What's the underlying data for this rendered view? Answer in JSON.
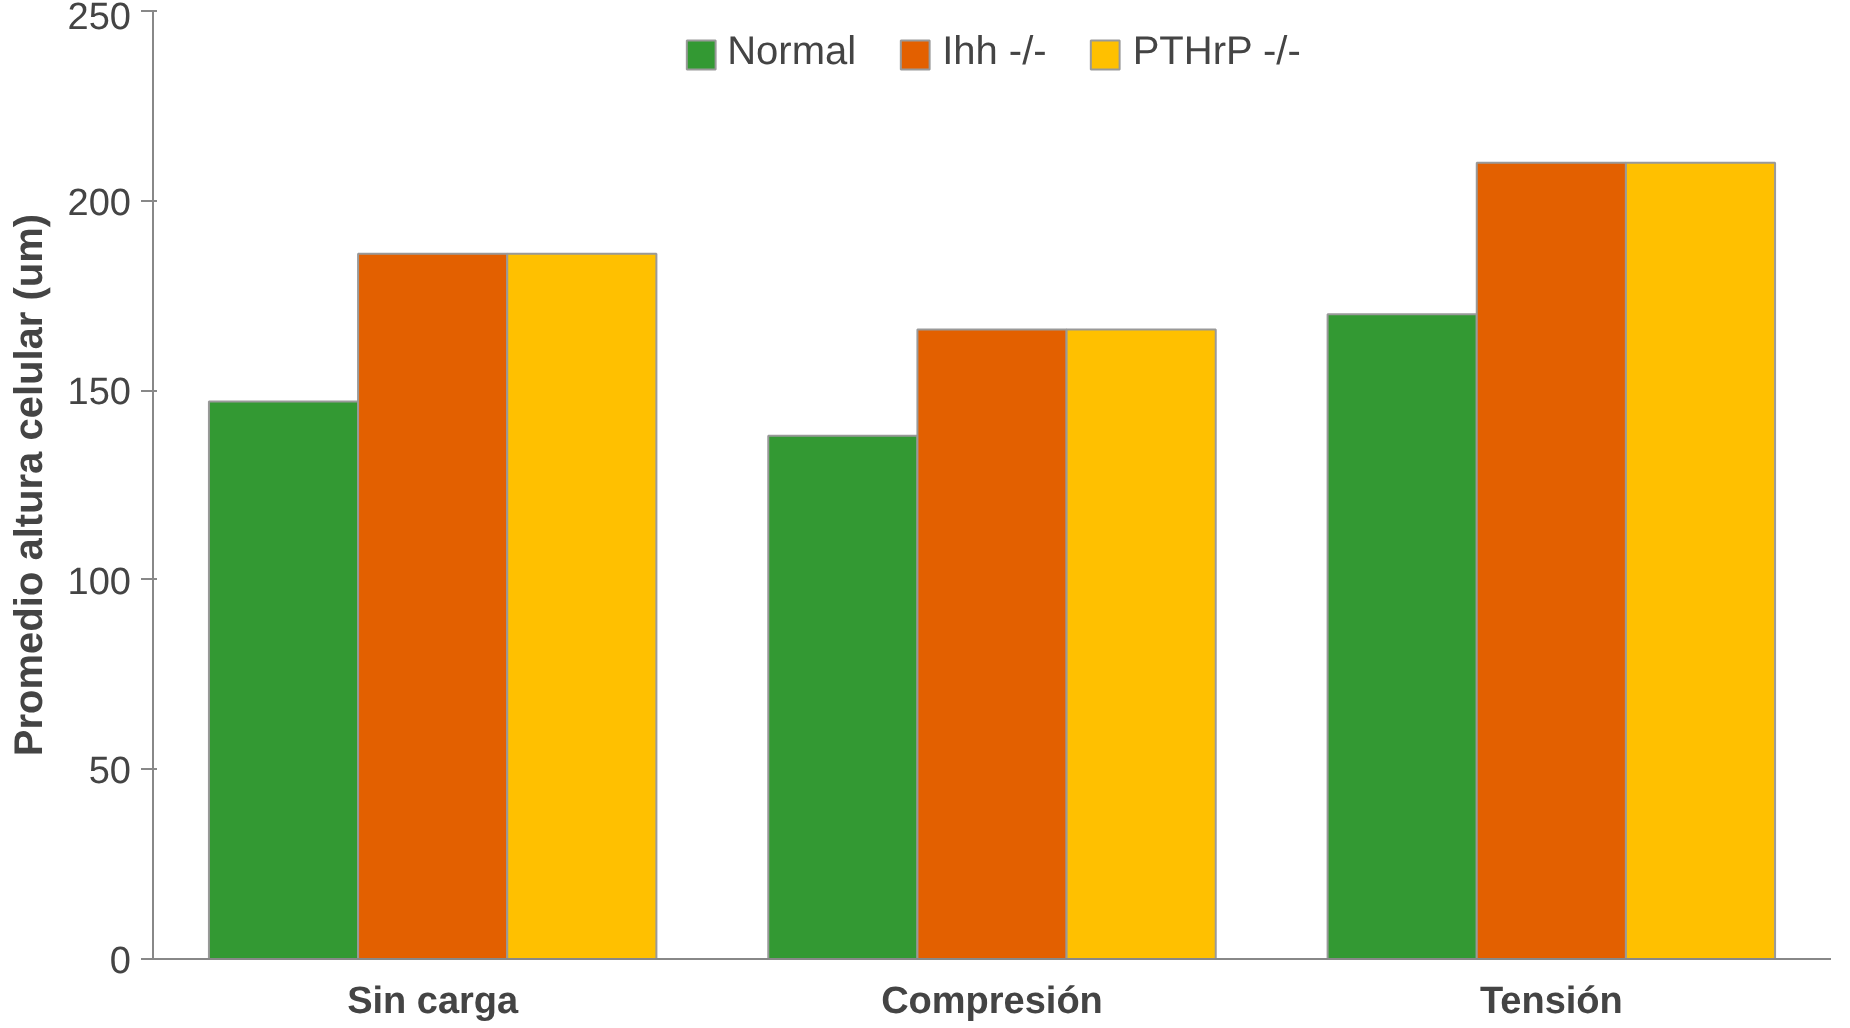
{
  "chart_data": {
    "type": "bar",
    "ylabel": "Promedio altura celular (um)",
    "categories": [
      "Sin carga",
      "Compresión",
      "Tensión"
    ],
    "series": [
      {
        "name": "Normal",
        "color": "#339933",
        "values": [
          147,
          138,
          170
        ]
      },
      {
        "name": "Ihh -/-",
        "color": "#e36000",
        "values": [
          186,
          166,
          210
        ]
      },
      {
        "name": "PTHrP -/-",
        "color": "#ffc000",
        "values": [
          186,
          166,
          210
        ]
      }
    ],
    "ylim": [
      0,
      250
    ],
    "yticks": [
      0,
      50,
      100,
      150,
      200,
      250
    ],
    "grid": false,
    "legend": "top"
  }
}
